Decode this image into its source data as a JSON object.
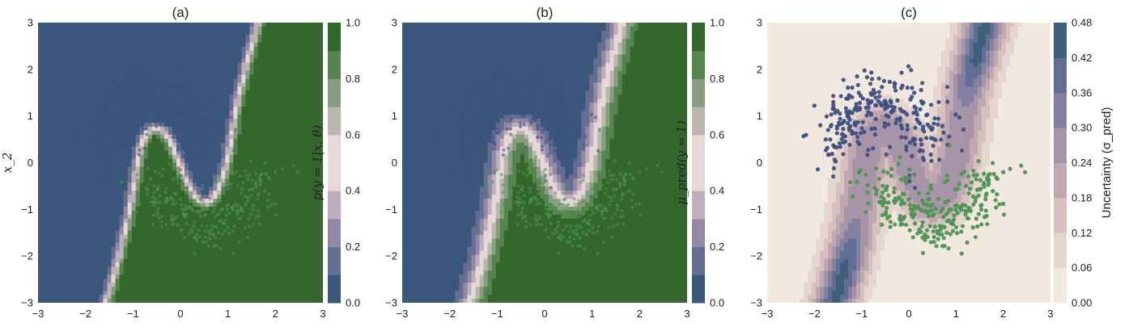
{
  "colors": {
    "class0": "#3E4F82",
    "class1": "#4E9452",
    "prob_scale": [
      "#2A4A6B",
      "#4A6288",
      "#7E7A9E",
      "#A897AE",
      "#D6C5C8",
      "#F3EAE3",
      "#D6C5C8",
      "#A0A697",
      "#6F9468",
      "#3C7436",
      "#2C5A24"
    ],
    "unc_scale": [
      "#F5EFE8",
      "#EEE2DA",
      "#E3D1CB",
      "#D4BDBC",
      "#BFA7AF",
      "#A995A8",
      "#8A83A3",
      "#6A7398",
      "#4A6288",
      "#2F5A6D"
    ]
  },
  "chart_data": [
    {
      "type": "heatmap",
      "title": "(a)",
      "xlabel": "",
      "ylabel": "x_2",
      "xlim": [
        -3,
        3
      ],
      "ylim": [
        -3,
        3
      ],
      "xticks": [
        "−3",
        "−2",
        "−1",
        "0",
        "1",
        "2",
        "3"
      ],
      "yticks": [
        "−3",
        "−2",
        "−1",
        "0",
        "1",
        "2",
        "3"
      ],
      "colorbar": {
        "label": "p(y = 1|x, θ)",
        "range": [
          0.0,
          1.0
        ],
        "ticks": [
          "0.0",
          "0.2",
          "0.4",
          "0.6",
          "0.8",
          "1.0"
        ]
      },
      "boundary_width": 0.25
    },
    {
      "type": "heatmap",
      "title": "(b)",
      "xlabel": "",
      "ylabel": "",
      "xlim": [
        -3,
        3
      ],
      "ylim": [
        -3,
        3
      ],
      "xticks": [
        "−3",
        "−2",
        "−1",
        "0",
        "1",
        "2",
        "3"
      ],
      "yticks": [
        "−3",
        "−2",
        "−1",
        "0",
        "1",
        "2",
        "3"
      ],
      "colorbar": {
        "label": "μ_pred(y = 1)",
        "range": [
          0.0,
          1.0
        ],
        "ticks": [
          "0.0",
          "0.2",
          "0.4",
          "0.6",
          "0.8",
          "1.0"
        ]
      },
      "boundary_width": 0.55
    },
    {
      "type": "heatmap",
      "title": "(c)",
      "xlabel": "",
      "ylabel": "",
      "xlim": [
        -3,
        3
      ],
      "ylim": [
        -3,
        3
      ],
      "xticks": [
        "−3",
        "−2",
        "−1",
        "0",
        "1",
        "2",
        "3"
      ],
      "yticks": [
        "−3",
        "−2",
        "−1",
        "0",
        "1",
        "2",
        "3"
      ],
      "colorbar": {
        "label": "Uncertainty (σ_pred)",
        "range": [
          0.0,
          0.48
        ],
        "ticks": [
          "0.00",
          "0.06",
          "0.12",
          "0.18",
          "0.24",
          "0.30",
          "0.36",
          "0.42",
          "0.48"
        ]
      }
    }
  ]
}
